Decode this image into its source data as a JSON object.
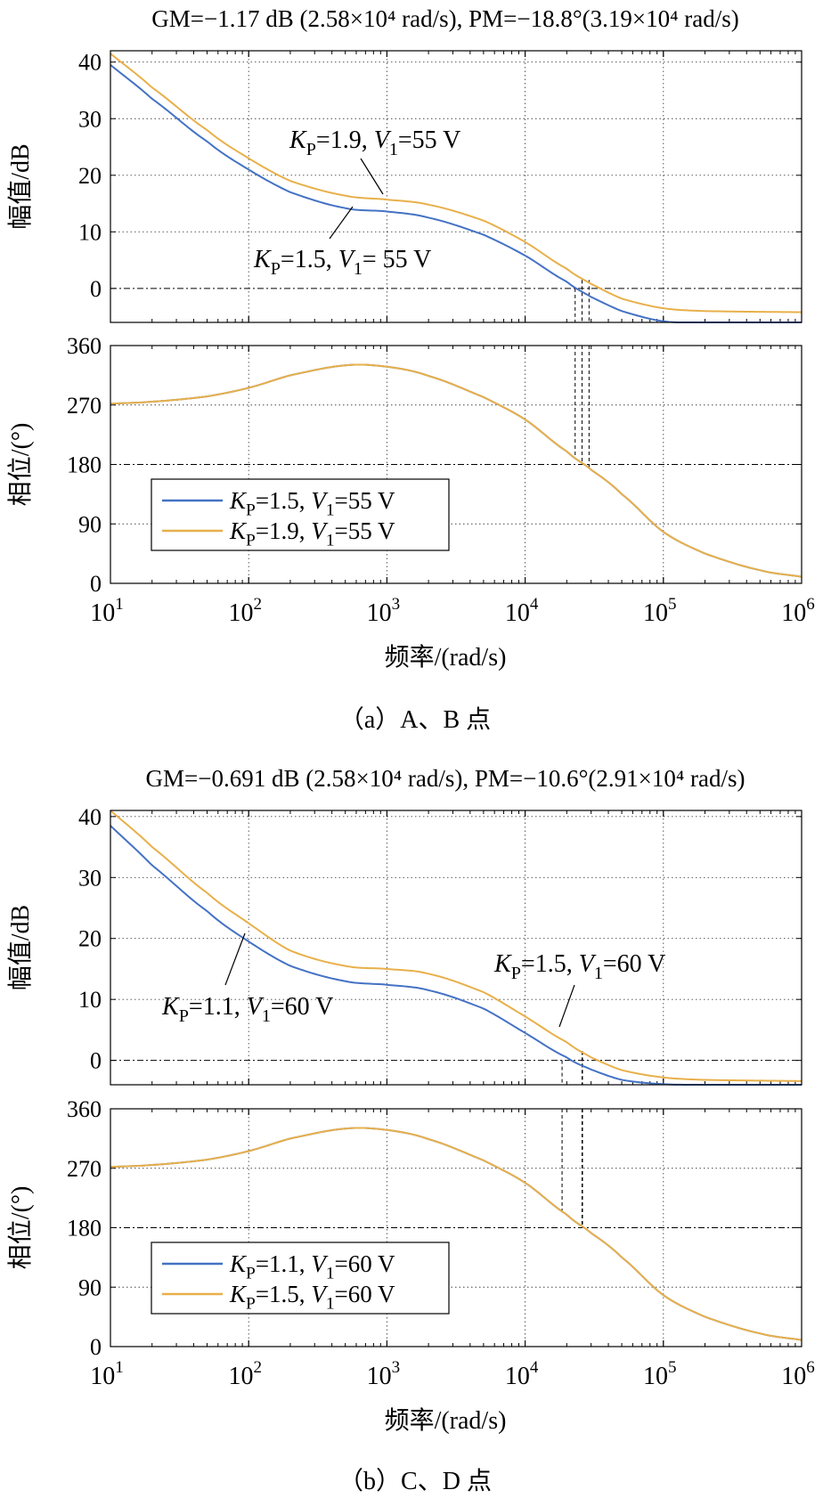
{
  "colors": {
    "blue": "#4472C4",
    "orange": "#E8B04A",
    "grid": "#444444"
  },
  "figures": [
    {
      "title": "GM=−1.17 dB (2.58×10⁴ rad/s), PM=−18.8°(3.19×10⁴ rad/s)",
      "caption": "（a）A、B 点",
      "series": [
        {
          "name": "K_P=1.5, V_1=55 V",
          "name_parts": [
            "K",
            "P",
            "=1.5, ",
            "V",
            "1",
            "=55 V"
          ],
          "color": "#4472C4"
        },
        {
          "name": "K_P=1.9, V_1=55 V",
          "name_parts": [
            "K",
            "P",
            "=1.9, ",
            "V",
            "1",
            "=55 V"
          ],
          "color": "#E8B04A"
        }
      ],
      "annotations": [
        {
          "text_parts": [
            "K",
            "P",
            "=1.9, ",
            "V",
            "1",
            "=55 V"
          ],
          "series": 1
        },
        {
          "text_parts": [
            "K",
            "P",
            "=1.5, ",
            "V",
            "1",
            "= 55 V"
          ],
          "series": 0
        }
      ],
      "margins": {
        "gain_crossover_rad_s": [
          23000,
          29000
        ],
        "phase_crossover_rad_s": [
          25800,
          31900
        ]
      }
    },
    {
      "title": "GM=−0.691 dB (2.58×10⁴ rad/s), PM=−10.6°(2.91×10⁴ rad/s)",
      "caption": "（b）C、D 点",
      "series": [
        {
          "name": "K_P=1.1, V_1=60 V",
          "name_parts": [
            "K",
            "P",
            "=1.1, ",
            "V",
            "1",
            "=60 V"
          ],
          "color": "#4472C4"
        },
        {
          "name": "K_P=1.5, V_1=60 V",
          "name_parts": [
            "K",
            "P",
            "=1.5, ",
            "V",
            "1",
            "=60 V"
          ],
          "color": "#E8B04A"
        }
      ],
      "annotations": [
        {
          "text_parts": [
            "K",
            "P",
            "=1.5, ",
            "V",
            "1",
            "=60 V"
          ],
          "series": 1
        },
        {
          "text_parts": [
            "K",
            "P",
            "=1.1, ",
            "V",
            "1",
            "=60 V"
          ],
          "series": 0
        }
      ],
      "margins": {
        "gain_crossover_rad_s": [
          18500,
          26000
        ],
        "phase_crossover_rad_s": [
          25800,
          29100
        ]
      }
    }
  ],
  "chart_data": [
    {
      "type": "line",
      "panel": "magnitude",
      "figure": "a",
      "xlabel": "频率/(rad/s)",
      "ylabel": "幅值/dB",
      "xscale": "log",
      "xlim": [
        10,
        1000000
      ],
      "ylim": [
        -6,
        42
      ],
      "xticks": [
        10,
        100,
        1000,
        10000,
        100000,
        1000000
      ],
      "xtick_labels": [
        "10¹",
        "10²",
        "10³",
        "10⁴",
        "10⁵",
        "10⁶"
      ],
      "yticks": [
        0,
        10,
        20,
        30,
        40
      ],
      "grid": true,
      "reference_line": 0,
      "x": [
        10,
        20,
        50,
        100,
        200,
        500,
        1000,
        2000,
        5000,
        10000,
        20000,
        30000,
        50000,
        100000,
        200000,
        1000000
      ],
      "series": [
        {
          "name": "K_P=1.5, V_1=55 V",
          "values": [
            39.5,
            33.5,
            26,
            21,
            17,
            14.2,
            13.6,
            12.5,
            9.5,
            5.8,
            1.2,
            -1.5,
            -4.0,
            -5.8,
            -6.0,
            -6.0
          ]
        },
        {
          "name": "K_P=1.9, V_1=55 V",
          "values": [
            41.5,
            35.5,
            28,
            23,
            19,
            16.4,
            15.7,
            14.8,
            12.0,
            8.2,
            3.5,
            0.8,
            -1.8,
            -3.5,
            -4.0,
            -4.2
          ]
        }
      ]
    },
    {
      "type": "line",
      "panel": "phase",
      "figure": "a",
      "xlabel": "频率/(rad/s)",
      "ylabel": "相位/(°)",
      "xscale": "log",
      "xlim": [
        10,
        1000000
      ],
      "ylim": [
        0,
        360
      ],
      "xticks": [
        10,
        100,
        1000,
        10000,
        100000,
        1000000
      ],
      "xtick_labels": [
        "10¹",
        "10²",
        "10³",
        "10⁴",
        "10⁵",
        "10⁶"
      ],
      "yticks": [
        0,
        90,
        180,
        270,
        360
      ],
      "grid": true,
      "reference_line": 180,
      "legend": "lower-left",
      "x": [
        10,
        20,
        50,
        100,
        200,
        500,
        1000,
        2000,
        5000,
        10000,
        20000,
        30000,
        50000,
        100000,
        200000,
        500000,
        1000000
      ],
      "series": [
        {
          "name": "K_P=1.5, V_1=55 V",
          "values": [
            272,
            275,
            283,
            296,
            315,
            330,
            328,
            314,
            282,
            248,
            200,
            172,
            135,
            78,
            45,
            20,
            10
          ]
        },
        {
          "name": "K_P=1.9, V_1=55 V",
          "values": [
            272,
            275,
            283,
            296,
            315,
            330,
            328,
            314,
            282,
            248,
            200,
            172,
            135,
            78,
            45,
            20,
            10
          ]
        }
      ]
    },
    {
      "type": "line",
      "panel": "magnitude",
      "figure": "b",
      "xlabel": "频率/(rad/s)",
      "ylabel": "幅值/dB",
      "xscale": "log",
      "xlim": [
        10,
        1000000
      ],
      "ylim": [
        -4,
        41
      ],
      "xticks": [
        10,
        100,
        1000,
        10000,
        100000,
        1000000
      ],
      "xtick_labels": [
        "10¹",
        "10²",
        "10³",
        "10⁴",
        "10⁵",
        "10⁶"
      ],
      "yticks": [
        0,
        10,
        20,
        30,
        40
      ],
      "grid": true,
      "reference_line": 0,
      "x": [
        10,
        20,
        50,
        100,
        200,
        500,
        1000,
        2000,
        5000,
        10000,
        20000,
        30000,
        50000,
        100000,
        200000,
        1000000
      ],
      "series": [
        {
          "name": "K_P=1.1, V_1=60 V",
          "values": [
            38.5,
            32,
            24.5,
            19.5,
            15.5,
            13,
            12.4,
            11.5,
            8.5,
            4.5,
            0.5,
            -1.5,
            -3.2,
            -3.9,
            -4.0,
            -4.0
          ]
        },
        {
          "name": "K_P=1.5, V_1=60 V",
          "values": [
            41,
            35,
            27.5,
            22.5,
            18,
            15.5,
            15.0,
            14.2,
            11.2,
            7.2,
            3.0,
            0.5,
            -1.6,
            -2.8,
            -3.2,
            -3.4
          ]
        }
      ]
    },
    {
      "type": "line",
      "panel": "phase",
      "figure": "b",
      "xlabel": "频率/(rad/s)",
      "ylabel": "相位/(°)",
      "xscale": "log",
      "xlim": [
        10,
        1000000
      ],
      "ylim": [
        0,
        360
      ],
      "xticks": [
        10,
        100,
        1000,
        10000,
        100000,
        1000000
      ],
      "xtick_labels": [
        "10¹",
        "10²",
        "10³",
        "10⁴",
        "10⁵",
        "10⁶"
      ],
      "yticks": [
        0,
        90,
        180,
        270,
        360
      ],
      "grid": true,
      "reference_line": 180,
      "legend": "lower-left",
      "x": [
        10,
        20,
        50,
        100,
        200,
        500,
        1000,
        2000,
        5000,
        10000,
        20000,
        30000,
        50000,
        100000,
        200000,
        500000,
        1000000
      ],
      "series": [
        {
          "name": "K_P=1.1, V_1=60 V",
          "values": [
            272,
            275,
            283,
            296,
            315,
            330,
            328,
            314,
            282,
            248,
            200,
            172,
            135,
            78,
            45,
            20,
            10
          ]
        },
        {
          "name": "K_P=1.5, V_1=60 V",
          "values": [
            272,
            275,
            283,
            296,
            315,
            330,
            328,
            314,
            282,
            248,
            200,
            172,
            135,
            78,
            45,
            20,
            10
          ]
        }
      ]
    }
  ]
}
